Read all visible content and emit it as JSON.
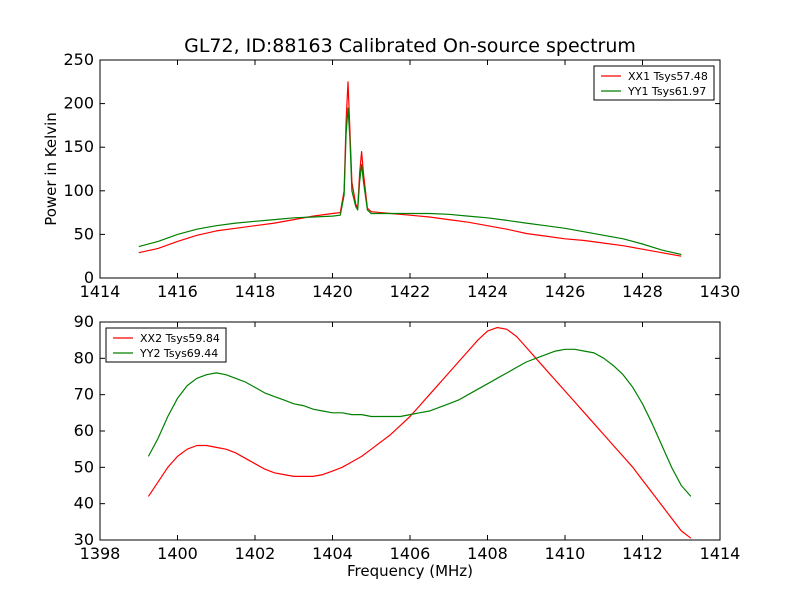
{
  "figure": {
    "title": "GL72, ID:88163 Calibrated On-source spectrum"
  },
  "colors": {
    "red": "#ff0000",
    "green": "#008000"
  },
  "chart_data": [
    {
      "type": "line",
      "title": "GL72, ID:88163 Calibrated On-source spectrum",
      "xlabel": "",
      "ylabel": "Power in Kelvin",
      "xlim": [
        1414,
        1430
      ],
      "ylim": [
        0,
        250
      ],
      "xticks": [
        1414,
        1416,
        1418,
        1420,
        1422,
        1424,
        1426,
        1428,
        1430
      ],
      "yticks": [
        0,
        50,
        100,
        150,
        200,
        250
      ],
      "grid": false,
      "legend": "top-right",
      "series": [
        {
          "name": "XX1 Tsys57.48",
          "color": "#ff0000",
          "points": [
            [
              1415.0,
              29
            ],
            [
              1415.5,
              34
            ],
            [
              1416.0,
              42
            ],
            [
              1416.5,
              49
            ],
            [
              1417.0,
              54
            ],
            [
              1417.5,
              57
            ],
            [
              1418.0,
              60
            ],
            [
              1418.5,
              63
            ],
            [
              1419.0,
              67
            ],
            [
              1419.5,
              71
            ],
            [
              1420.0,
              74
            ],
            [
              1420.2,
              75
            ],
            [
              1420.3,
              100
            ],
            [
              1420.35,
              180
            ],
            [
              1420.4,
              225
            ],
            [
              1420.45,
              170
            ],
            [
              1420.5,
              110
            ],
            [
              1420.6,
              85
            ],
            [
              1420.65,
              80
            ],
            [
              1420.7,
              120
            ],
            [
              1420.75,
              145
            ],
            [
              1420.8,
              120
            ],
            [
              1420.9,
              80
            ],
            [
              1421.0,
              76
            ],
            [
              1421.5,
              74
            ],
            [
              1422.0,
              72
            ],
            [
              1422.5,
              70
            ],
            [
              1423.0,
              67
            ],
            [
              1423.5,
              64
            ],
            [
              1424.0,
              60
            ],
            [
              1424.5,
              56
            ],
            [
              1425.0,
              51
            ],
            [
              1425.5,
              48
            ],
            [
              1426.0,
              45
            ],
            [
              1426.5,
              43
            ],
            [
              1427.0,
              40
            ],
            [
              1427.5,
              37
            ],
            [
              1428.0,
              33
            ],
            [
              1428.5,
              29
            ],
            [
              1429.0,
              25
            ]
          ]
        },
        {
          "name": "YY1 Tsys61.97",
          "color": "#008000",
          "points": [
            [
              1415.0,
              36
            ],
            [
              1415.5,
              42
            ],
            [
              1416.0,
              50
            ],
            [
              1416.5,
              56
            ],
            [
              1417.0,
              60
            ],
            [
              1417.5,
              63
            ],
            [
              1418.0,
              65
            ],
            [
              1418.5,
              67
            ],
            [
              1419.0,
              69
            ],
            [
              1419.5,
              70
            ],
            [
              1420.0,
              71
            ],
            [
              1420.2,
              72
            ],
            [
              1420.3,
              95
            ],
            [
              1420.35,
              165
            ],
            [
              1420.4,
              195
            ],
            [
              1420.45,
              160
            ],
            [
              1420.5,
              100
            ],
            [
              1420.6,
              82
            ],
            [
              1420.65,
              78
            ],
            [
              1420.7,
              110
            ],
            [
              1420.75,
              130
            ],
            [
              1420.8,
              110
            ],
            [
              1420.9,
              78
            ],
            [
              1421.0,
              74
            ],
            [
              1421.5,
              74
            ],
            [
              1422.0,
              74
            ],
            [
              1422.5,
              74
            ],
            [
              1423.0,
              73
            ],
            [
              1423.5,
              71
            ],
            [
              1424.0,
              69
            ],
            [
              1424.5,
              66
            ],
            [
              1425.0,
              63
            ],
            [
              1425.5,
              60
            ],
            [
              1426.0,
              57
            ],
            [
              1426.5,
              53
            ],
            [
              1427.0,
              49
            ],
            [
              1427.5,
              45
            ],
            [
              1428.0,
              39
            ],
            [
              1428.5,
              32
            ],
            [
              1429.0,
              27
            ]
          ]
        }
      ]
    },
    {
      "type": "line",
      "title": "",
      "xlabel": "Frequency (MHz)",
      "ylabel": "",
      "xlim": [
        1398,
        1414
      ],
      "ylim": [
        30,
        90
      ],
      "xticks": [
        1398,
        1400,
        1402,
        1404,
        1406,
        1408,
        1410,
        1412,
        1414
      ],
      "yticks": [
        30,
        40,
        50,
        60,
        70,
        80,
        90
      ],
      "grid": false,
      "legend": "top-left",
      "series": [
        {
          "name": "XX2 Tsys59.84",
          "color": "#ff0000",
          "points": [
            [
              1399.25,
              42
            ],
            [
              1399.5,
              46
            ],
            [
              1399.75,
              50
            ],
            [
              1400.0,
              53
            ],
            [
              1400.25,
              55
            ],
            [
              1400.5,
              56
            ],
            [
              1400.75,
              56
            ],
            [
              1401.0,
              55.5
            ],
            [
              1401.25,
              55
            ],
            [
              1401.5,
              54
            ],
            [
              1401.75,
              52.5
            ],
            [
              1402.0,
              51
            ],
            [
              1402.25,
              49.5
            ],
            [
              1402.5,
              48.5
            ],
            [
              1402.75,
              48
            ],
            [
              1403.0,
              47.5
            ],
            [
              1403.25,
              47.5
            ],
            [
              1403.5,
              47.5
            ],
            [
              1403.75,
              48
            ],
            [
              1404.0,
              49
            ],
            [
              1404.25,
              50
            ],
            [
              1404.5,
              51.5
            ],
            [
              1404.75,
              53
            ],
            [
              1405.0,
              55
            ],
            [
              1405.25,
              57
            ],
            [
              1405.5,
              59
            ],
            [
              1405.75,
              61.5
            ],
            [
              1406.0,
              64
            ],
            [
              1406.25,
              67
            ],
            [
              1406.5,
              70
            ],
            [
              1406.75,
              73
            ],
            [
              1407.0,
              76
            ],
            [
              1407.25,
              79
            ],
            [
              1407.5,
              82
            ],
            [
              1407.75,
              85
            ],
            [
              1408.0,
              87.5
            ],
            [
              1408.25,
              88.5
            ],
            [
              1408.5,
              88
            ],
            [
              1408.75,
              86
            ],
            [
              1409.0,
              83
            ],
            [
              1409.25,
              80
            ],
            [
              1409.5,
              77
            ],
            [
              1409.75,
              74
            ],
            [
              1410.0,
              71
            ],
            [
              1410.25,
              68
            ],
            [
              1410.5,
              65
            ],
            [
              1410.75,
              62
            ],
            [
              1411.0,
              59
            ],
            [
              1411.25,
              56
            ],
            [
              1411.5,
              53
            ],
            [
              1411.75,
              50
            ],
            [
              1412.0,
              46.5
            ],
            [
              1412.25,
              43
            ],
            [
              1412.5,
              39.5
            ],
            [
              1412.75,
              36
            ],
            [
              1413.0,
              32.5
            ],
            [
              1413.25,
              30.5
            ]
          ]
        },
        {
          "name": "YY2 Tsys69.44",
          "color": "#008000",
          "points": [
            [
              1399.25,
              53
            ],
            [
              1399.5,
              58
            ],
            [
              1399.75,
              64
            ],
            [
              1400.0,
              69
            ],
            [
              1400.25,
              72.5
            ],
            [
              1400.5,
              74.5
            ],
            [
              1400.75,
              75.5
            ],
            [
              1401.0,
              76
            ],
            [
              1401.25,
              75.5
            ],
            [
              1401.5,
              74.5
            ],
            [
              1401.75,
              73.5
            ],
            [
              1402.0,
              72
            ],
            [
              1402.25,
              70.5
            ],
            [
              1402.5,
              69.5
            ],
            [
              1402.75,
              68.5
            ],
            [
              1403.0,
              67.5
            ],
            [
              1403.25,
              67
            ],
            [
              1403.5,
              66
            ],
            [
              1403.75,
              65.5
            ],
            [
              1404.0,
              65
            ],
            [
              1404.25,
              65
            ],
            [
              1404.5,
              64.5
            ],
            [
              1404.75,
              64.5
            ],
            [
              1405.0,
              64
            ],
            [
              1405.25,
              64
            ],
            [
              1405.5,
              64
            ],
            [
              1405.75,
              64
            ],
            [
              1406.0,
              64.5
            ],
            [
              1406.25,
              65
            ],
            [
              1406.5,
              65.5
            ],
            [
              1406.75,
              66.5
            ],
            [
              1407.0,
              67.5
            ],
            [
              1407.25,
              68.5
            ],
            [
              1407.5,
              70
            ],
            [
              1407.75,
              71.5
            ],
            [
              1408.0,
              73
            ],
            [
              1408.25,
              74.5
            ],
            [
              1408.5,
              76
            ],
            [
              1408.75,
              77.5
            ],
            [
              1409.0,
              79
            ],
            [
              1409.25,
              80
            ],
            [
              1409.5,
              81
            ],
            [
              1409.75,
              82
            ],
            [
              1410.0,
              82.5
            ],
            [
              1410.25,
              82.5
            ],
            [
              1410.5,
              82
            ],
            [
              1410.75,
              81.5
            ],
            [
              1411.0,
              80
            ],
            [
              1411.25,
              78
            ],
            [
              1411.5,
              75.5
            ],
            [
              1411.75,
              72
            ],
            [
              1412.0,
              67.5
            ],
            [
              1412.25,
              62
            ],
            [
              1412.5,
              56
            ],
            [
              1412.75,
              50
            ],
            [
              1413.0,
              45
            ],
            [
              1413.25,
              42
            ]
          ]
        }
      ]
    }
  ]
}
